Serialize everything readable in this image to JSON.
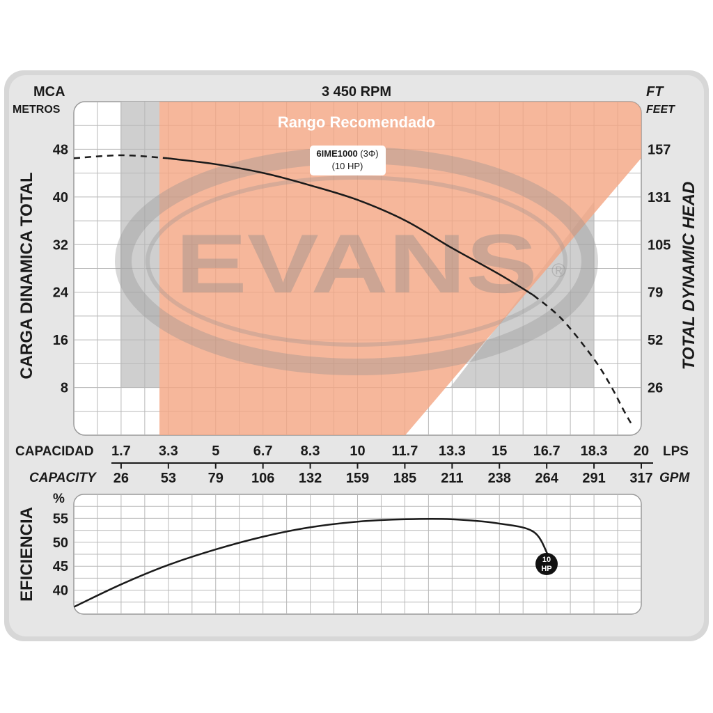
{
  "header": {
    "rpm": "3 450 RPM",
    "left_unit": "MCA",
    "left_unit_sub": "METROS",
    "right_unit": "FT",
    "right_unit_sub": "FEET"
  },
  "axes": {
    "left_title": "CARGA  DINAMICA  TOTAL",
    "right_title": "TOTAL  DYNAMIC  HEAD",
    "head_m_ticks": [
      "8",
      "16",
      "24",
      "32",
      "40",
      "48"
    ],
    "head_ft_ticks": [
      "26",
      "52",
      "79",
      "105",
      "131",
      "157"
    ],
    "capacity_label": "CAPACIDAD",
    "capacity_en_label": "CAPACITY",
    "lps_unit": "LPS",
    "gpm_unit": "GPM",
    "lps_ticks": [
      "1.7",
      "3.3",
      "5",
      "6.7",
      "8.3",
      "10",
      "11.7",
      "13.3",
      "15",
      "16.7",
      "18.3",
      "20"
    ],
    "gpm_ticks": [
      "26",
      "53",
      "79",
      "106",
      "132",
      "159",
      "185",
      "211",
      "238",
      "264",
      "291",
      "317"
    ],
    "eff_title": "EFICIENCIA",
    "eff_unit": "%",
    "eff_ticks": [
      "40",
      "45",
      "50",
      "55"
    ]
  },
  "recommended_range_label": "Rango Recomendado",
  "watermark": "EVANS",
  "model": {
    "name": "6IME1000",
    "phase": " (3Φ)",
    "power": "(10 HP)",
    "badge_top": "10",
    "badge_bottom": "HP"
  },
  "colors": {
    "recommended": "#f4a582",
    "curve": "#1a1a1a",
    "grid": "#b8b8b8",
    "watermark": "#9a9a9a"
  },
  "chart_data": [
    {
      "type": "line",
      "title": "3 450 RPM",
      "xlabel": "CAPACIDAD (LPS)",
      "ylabel": "CARGA DINAMICA TOTAL (MCA)",
      "xlim": [
        0,
        20
      ],
      "ylim": [
        0,
        56
      ],
      "recommended_range_lps": [
        3.3,
        11.7
      ],
      "series": [
        {
          "name": "6IME1000 (3Φ) (10 HP)",
          "x": [
            0,
            1.7,
            3.3,
            5,
            6.7,
            8.3,
            10,
            11.7,
            13.3,
            15,
            16.2
          ],
          "y": [
            46.5,
            47,
            46.5,
            45.5,
            44,
            42,
            39.5,
            36,
            31.5,
            27,
            23.5
          ],
          "style": "solid"
        },
        {
          "name": "",
          "x": [
            16.2,
            17.2,
            18.3,
            18.9,
            19.4,
            19.7
          ],
          "y": [
            23.5,
            19.5,
            13,
            8.5,
            4,
            1.5
          ],
          "style": "dashed"
        }
      ]
    },
    {
      "type": "line",
      "xlabel": "CAPACIDAD (LPS)",
      "ylabel": "EFICIENCIA (%)",
      "xlim": [
        0,
        20
      ],
      "ylim": [
        35,
        60
      ],
      "series": [
        {
          "name": "10 HP",
          "x": [
            0,
            1.7,
            3.3,
            5,
            6.7,
            8.3,
            10,
            11.7,
            13.3,
            15,
            16.2,
            16.7
          ],
          "y": [
            36.5,
            41.3,
            45.2,
            48.5,
            51.2,
            53.1,
            54.3,
            54.8,
            54.8,
            53.9,
            52.2,
            47.5
          ]
        }
      ]
    }
  ]
}
